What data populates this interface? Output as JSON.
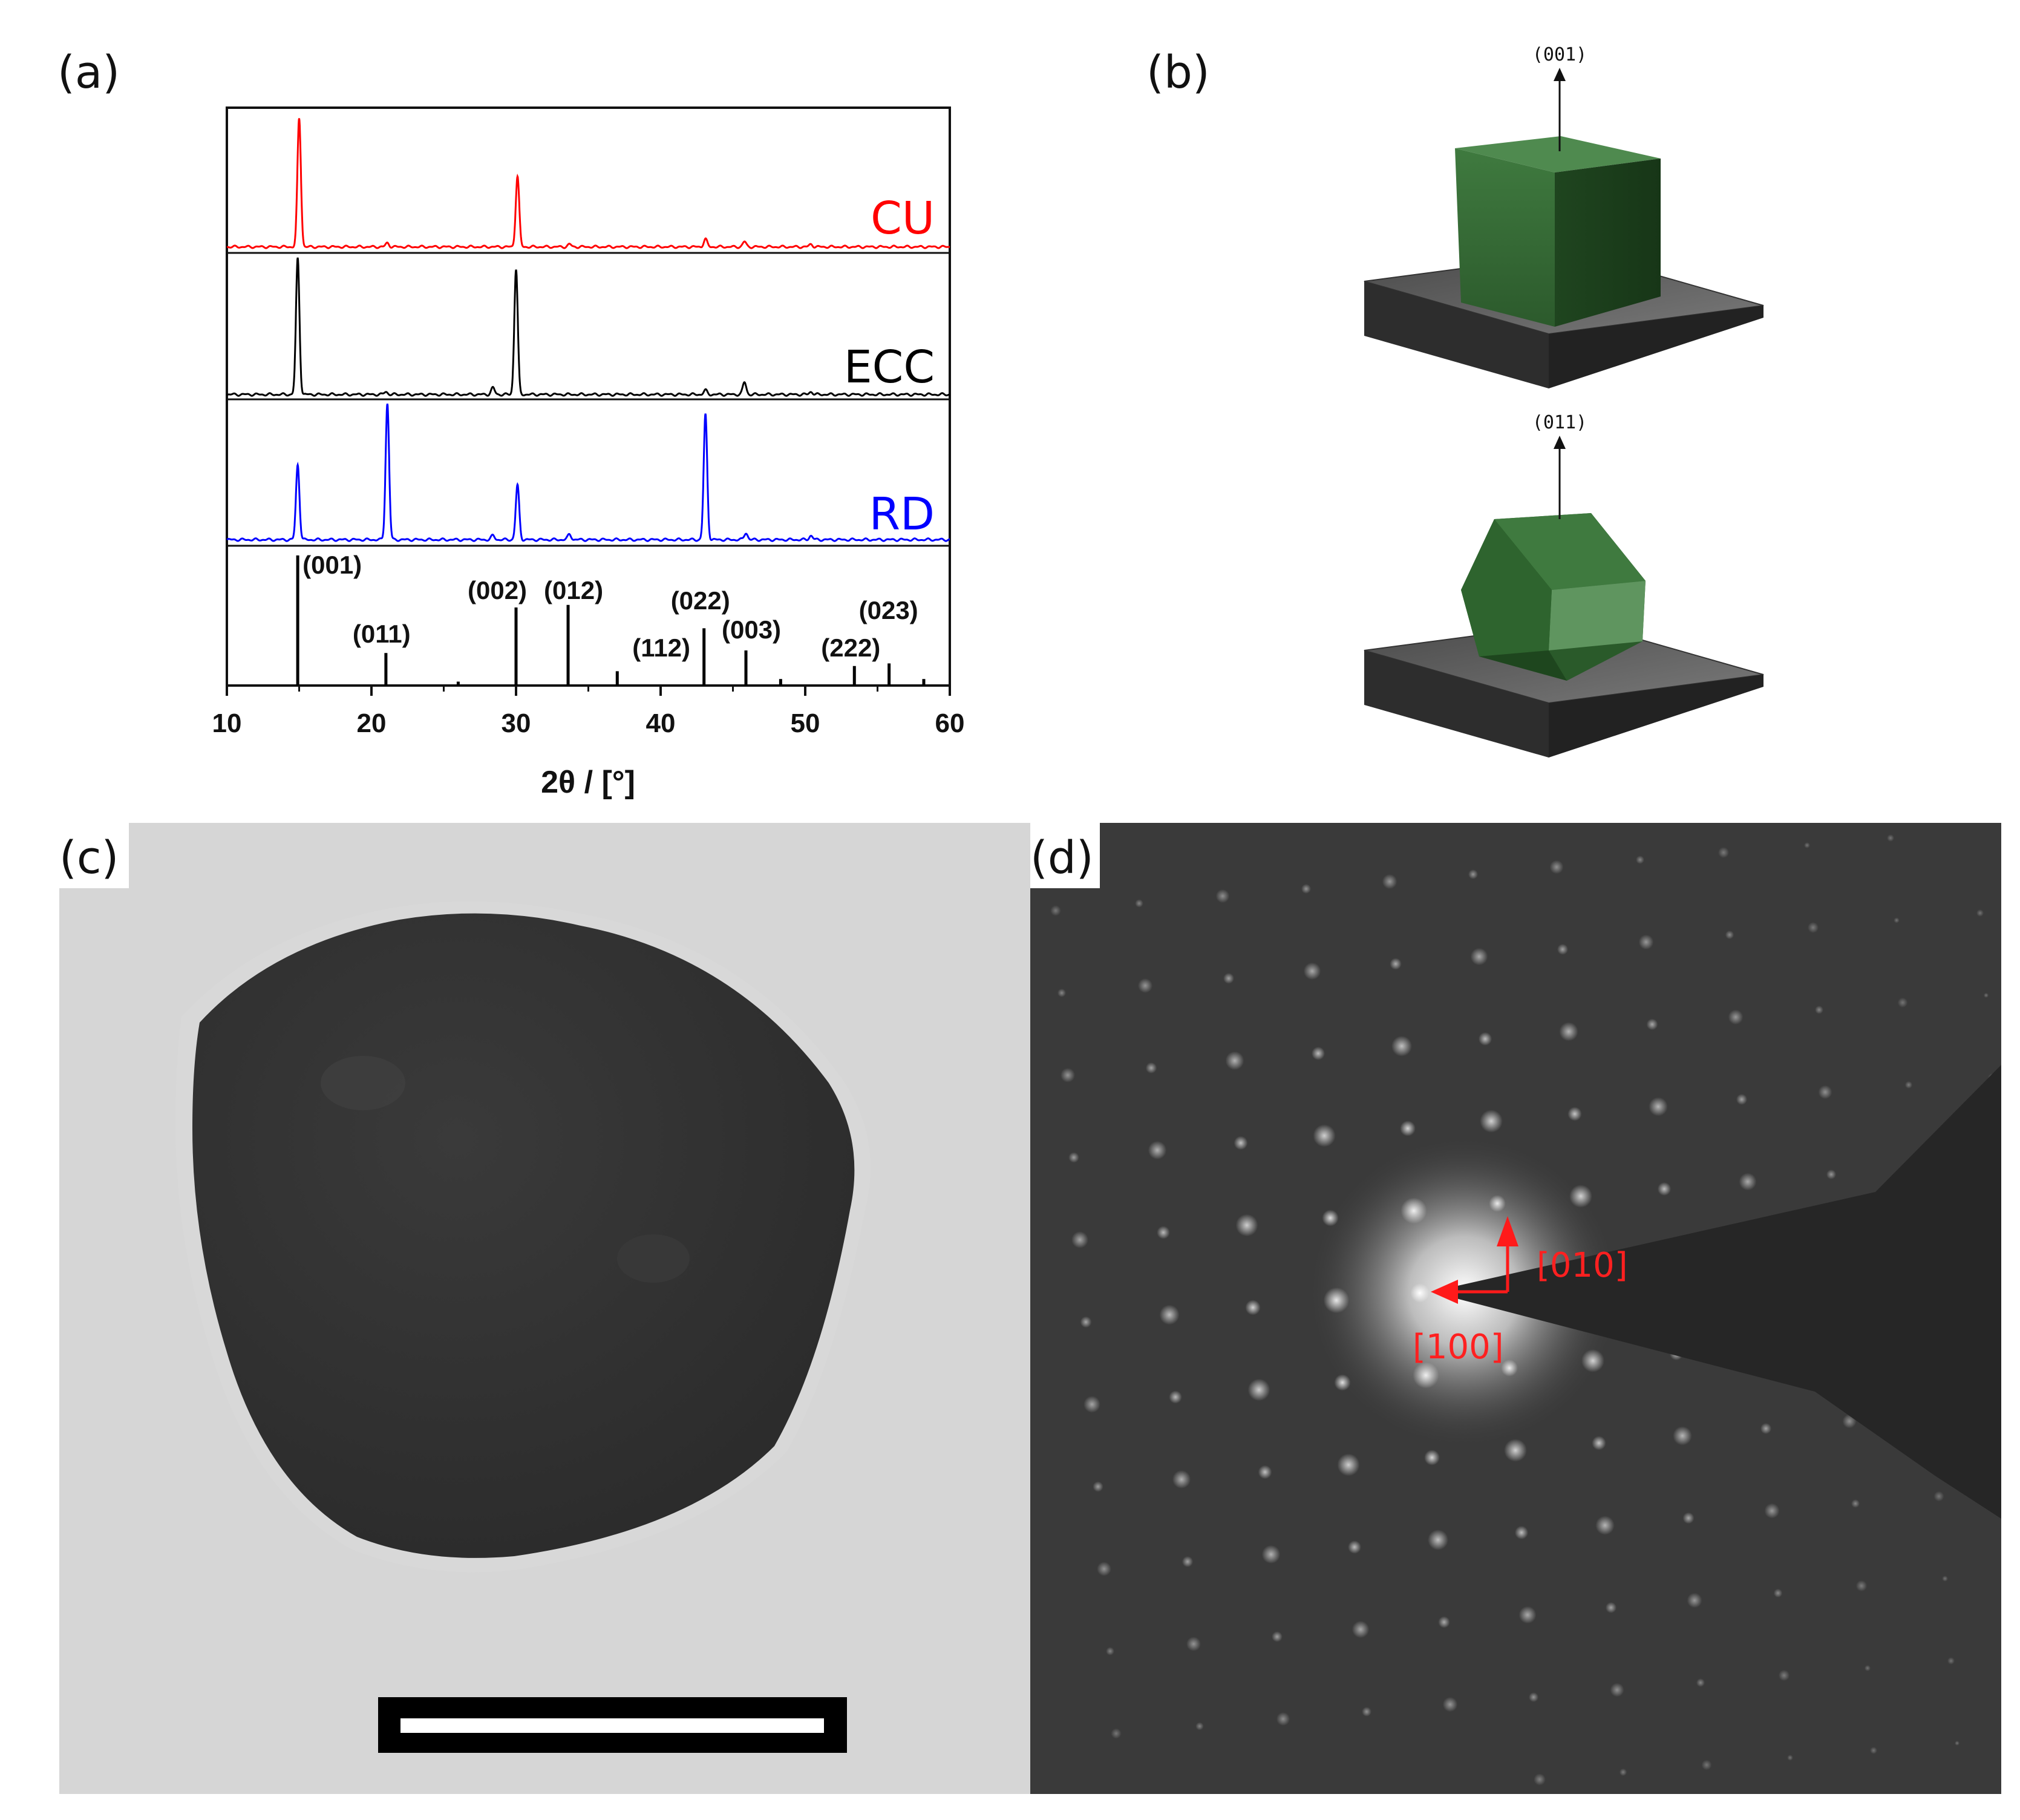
{
  "panels": {
    "a": {
      "label": "(a)"
    },
    "b": {
      "label": "(b)",
      "orientation_top": "(001)",
      "orientation_bottom": "(011)"
    },
    "c": {
      "label": "(c)"
    },
    "d": {
      "label": "(d)",
      "zone_axis_1": "[010]",
      "zone_axis_2": "[100]"
    }
  },
  "colors": {
    "CU": "#ff0000",
    "ECC": "#000000",
    "RD": "#0000ff",
    "crystal": "#2e5e2e",
    "substrate": "#555555"
  },
  "chart_data": {
    "type": "line",
    "xlabel": "2θ / [°]",
    "ylabel": "",
    "xlim": [
      10,
      60
    ],
    "xticks": [
      10,
      20,
      30,
      40,
      50,
      60
    ],
    "grid": false,
    "series": [
      {
        "name": "CU",
        "peaks": [
          [
            15.0,
            1.0
          ],
          [
            21.1,
            0.03
          ],
          [
            30.1,
            0.55
          ],
          [
            33.7,
            0.02
          ],
          [
            43.1,
            0.06
          ],
          [
            45.8,
            0.04
          ],
          [
            50.4,
            0.02
          ]
        ]
      },
      {
        "name": "ECC",
        "peaks": [
          [
            14.9,
            1.0
          ],
          [
            21.0,
            0.02
          ],
          [
            28.4,
            0.05
          ],
          [
            30.0,
            0.92
          ],
          [
            43.1,
            0.03
          ],
          [
            45.8,
            0.09
          ],
          [
            50.4,
            0.02
          ]
        ]
      },
      {
        "name": "RD",
        "peaks": [
          [
            14.9,
            0.55
          ],
          [
            21.1,
            1.0
          ],
          [
            28.4,
            0.03
          ],
          [
            30.1,
            0.4
          ],
          [
            33.7,
            0.04
          ],
          [
            43.1,
            0.92
          ],
          [
            45.9,
            0.05
          ],
          [
            50.4,
            0.03
          ]
        ]
      }
    ],
    "reference": {
      "peaks": [
        [
          14.9,
          1.0
        ],
        [
          21.0,
          0.25
        ],
        [
          26.0,
          0.03
        ],
        [
          30.0,
          0.6
        ],
        [
          33.6,
          0.62
        ],
        [
          37.0,
          0.11
        ],
        [
          43.0,
          0.44
        ],
        [
          45.9,
          0.27
        ],
        [
          48.3,
          0.05
        ],
        [
          53.4,
          0.15
        ],
        [
          55.8,
          0.17
        ],
        [
          58.2,
          0.05
        ]
      ],
      "labels": [
        {
          "text": "(001)",
          "x": 14.9
        },
        {
          "text": "(011)",
          "x": 21.0
        },
        {
          "text": "(002)",
          "x": 30.0
        },
        {
          "text": "(012)",
          "x": 33.6
        },
        {
          "text": "(112)",
          "x": 37.0
        },
        {
          "text": "(022)",
          "x": 43.0
        },
        {
          "text": "(003)",
          "x": 45.9
        },
        {
          "text": "(222)",
          "x": 53.4
        },
        {
          "text": "(023)",
          "x": 55.8
        }
      ]
    }
  }
}
